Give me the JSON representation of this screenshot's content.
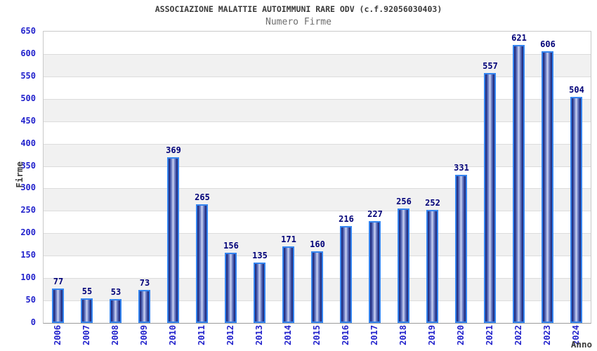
{
  "title": "ASSOCIAZIONE MALATTIE AUTOIMMUNI RARE ODV (c.f.92056030403)",
  "subtitle": "Numero Firme",
  "y_axis": {
    "title": "Firme",
    "ticks": [
      0,
      50,
      100,
      150,
      200,
      250,
      300,
      350,
      400,
      450,
      500,
      550,
      600,
      650
    ]
  },
  "x_axis": {
    "title": "Anno"
  },
  "chart_data": {
    "type": "bar",
    "title": "ASSOCIAZIONE MALATTIE AUTOIMMUNI RARE ODV (c.f.92056030403)",
    "subtitle": "Numero Firme",
    "xlabel": "Anno",
    "ylabel": "Firme",
    "categories": [
      "2006",
      "2007",
      "2008",
      "2009",
      "2010",
      "2011",
      "2012",
      "2013",
      "2014",
      "2015",
      "2016",
      "2017",
      "2018",
      "2019",
      "2020",
      "2021",
      "2022",
      "2023",
      "2024"
    ],
    "values": [
      77,
      55,
      53,
      73,
      369,
      265,
      156,
      135,
      171,
      160,
      216,
      227,
      256,
      252,
      331,
      557,
      621,
      606,
      504
    ],
    "ylim": [
      0,
      650
    ],
    "ytick_step": 50,
    "grid": "horizontal gridlines with alternating 50-unit background bands",
    "legend": "none",
    "bar_labels": "value shown above each bar"
  },
  "colors": {
    "tick_label_blue": "#2222cc",
    "value_label_navy": "#000078",
    "bar_border_blue": "#3585f0",
    "bar_gradient_edge": "#161d6d",
    "bar_gradient_center": "#d3daf4",
    "band_gray": "#f1f1f1",
    "band_white": "#ffffff",
    "gridline": "#dcdcdc",
    "plot_border": "#c9c9c9",
    "axis_line": "#9a9a9a",
    "title_gray": "#3a3a3a",
    "subtitle_gray": "#6e6e6e"
  }
}
